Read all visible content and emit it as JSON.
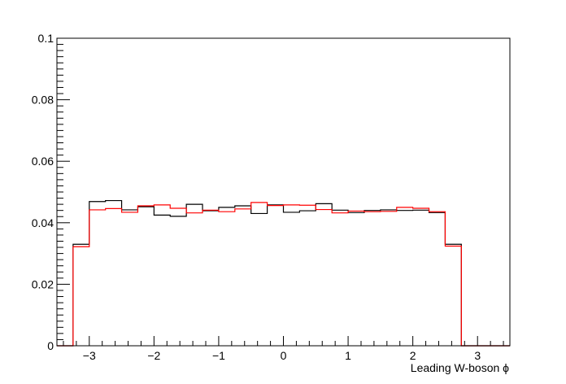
{
  "chart_data": {
    "type": "step",
    "xlabel": "Leading W-boson ϕ",
    "ylabel": "",
    "title": "",
    "xlim": [
      -3.5,
      3.5
    ],
    "ylim": [
      0,
      0.1
    ],
    "xticks": [
      -3,
      -2,
      -1,
      0,
      1,
      2,
      3
    ],
    "xtick_labels": [
      "−3",
      "−2",
      "−1",
      "0",
      "1",
      "2",
      "3"
    ],
    "yticks": [
      0,
      0.02,
      0.04,
      0.06,
      0.08,
      0.1
    ],
    "ytick_labels": [
      "0",
      "0.02",
      "0.04",
      "0.06",
      "0.08",
      "0.1"
    ],
    "bin_edges": [
      -3.5,
      -3.25,
      -3.0,
      -2.75,
      -2.5,
      -2.25,
      -2.0,
      -1.75,
      -1.5,
      -1.25,
      -1.0,
      -0.75,
      -0.5,
      -0.25,
      0.0,
      0.25,
      0.5,
      0.75,
      1.0,
      1.25,
      1.5,
      1.75,
      2.0,
      2.25,
      2.5,
      2.75,
      3.0,
      3.25,
      3.5
    ],
    "series": [
      {
        "color": "#000000",
        "values": [
          0,
          0.033,
          0.0469,
          0.0472,
          0.0442,
          0.0452,
          0.0425,
          0.0421,
          0.046,
          0.0439,
          0.045,
          0.0455,
          0.043,
          0.0458,
          0.0434,
          0.0439,
          0.0462,
          0.0441,
          0.0433,
          0.044,
          0.0442,
          0.044,
          0.0441,
          0.0433,
          0.033,
          0,
          0,
          0
        ]
      },
      {
        "color": "#ff0000",
        "values": [
          0,
          0.0322,
          0.0442,
          0.0446,
          0.0434,
          0.0455,
          0.0458,
          0.0447,
          0.0432,
          0.0441,
          0.0436,
          0.0445,
          0.0466,
          0.0456,
          0.0458,
          0.0457,
          0.0443,
          0.0432,
          0.0438,
          0.0436,
          0.0437,
          0.045,
          0.0447,
          0.0436,
          0.0324,
          0,
          0,
          0
        ]
      }
    ]
  }
}
